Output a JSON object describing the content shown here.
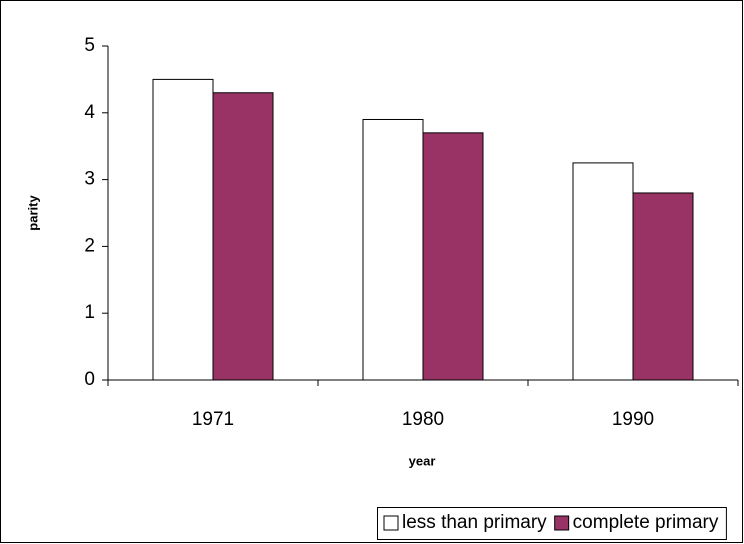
{
  "chart_data": {
    "type": "bar",
    "x_label": "year",
    "y_label": "parity",
    "categories": [
      "1971",
      "1980",
      "1990"
    ],
    "series": [
      {
        "name": "less than primary",
        "color": "#ffffff",
        "values": [
          4.5,
          3.9,
          3.25
        ]
      },
      {
        "name": "complete primary",
        "color": "#993366",
        "values": [
          4.3,
          3.7,
          2.8
        ]
      }
    ],
    "ylim": [
      0,
      5
    ],
    "yticks": [
      0,
      1,
      2,
      3,
      4,
      5
    ],
    "grid": false,
    "legend": "bottom"
  }
}
